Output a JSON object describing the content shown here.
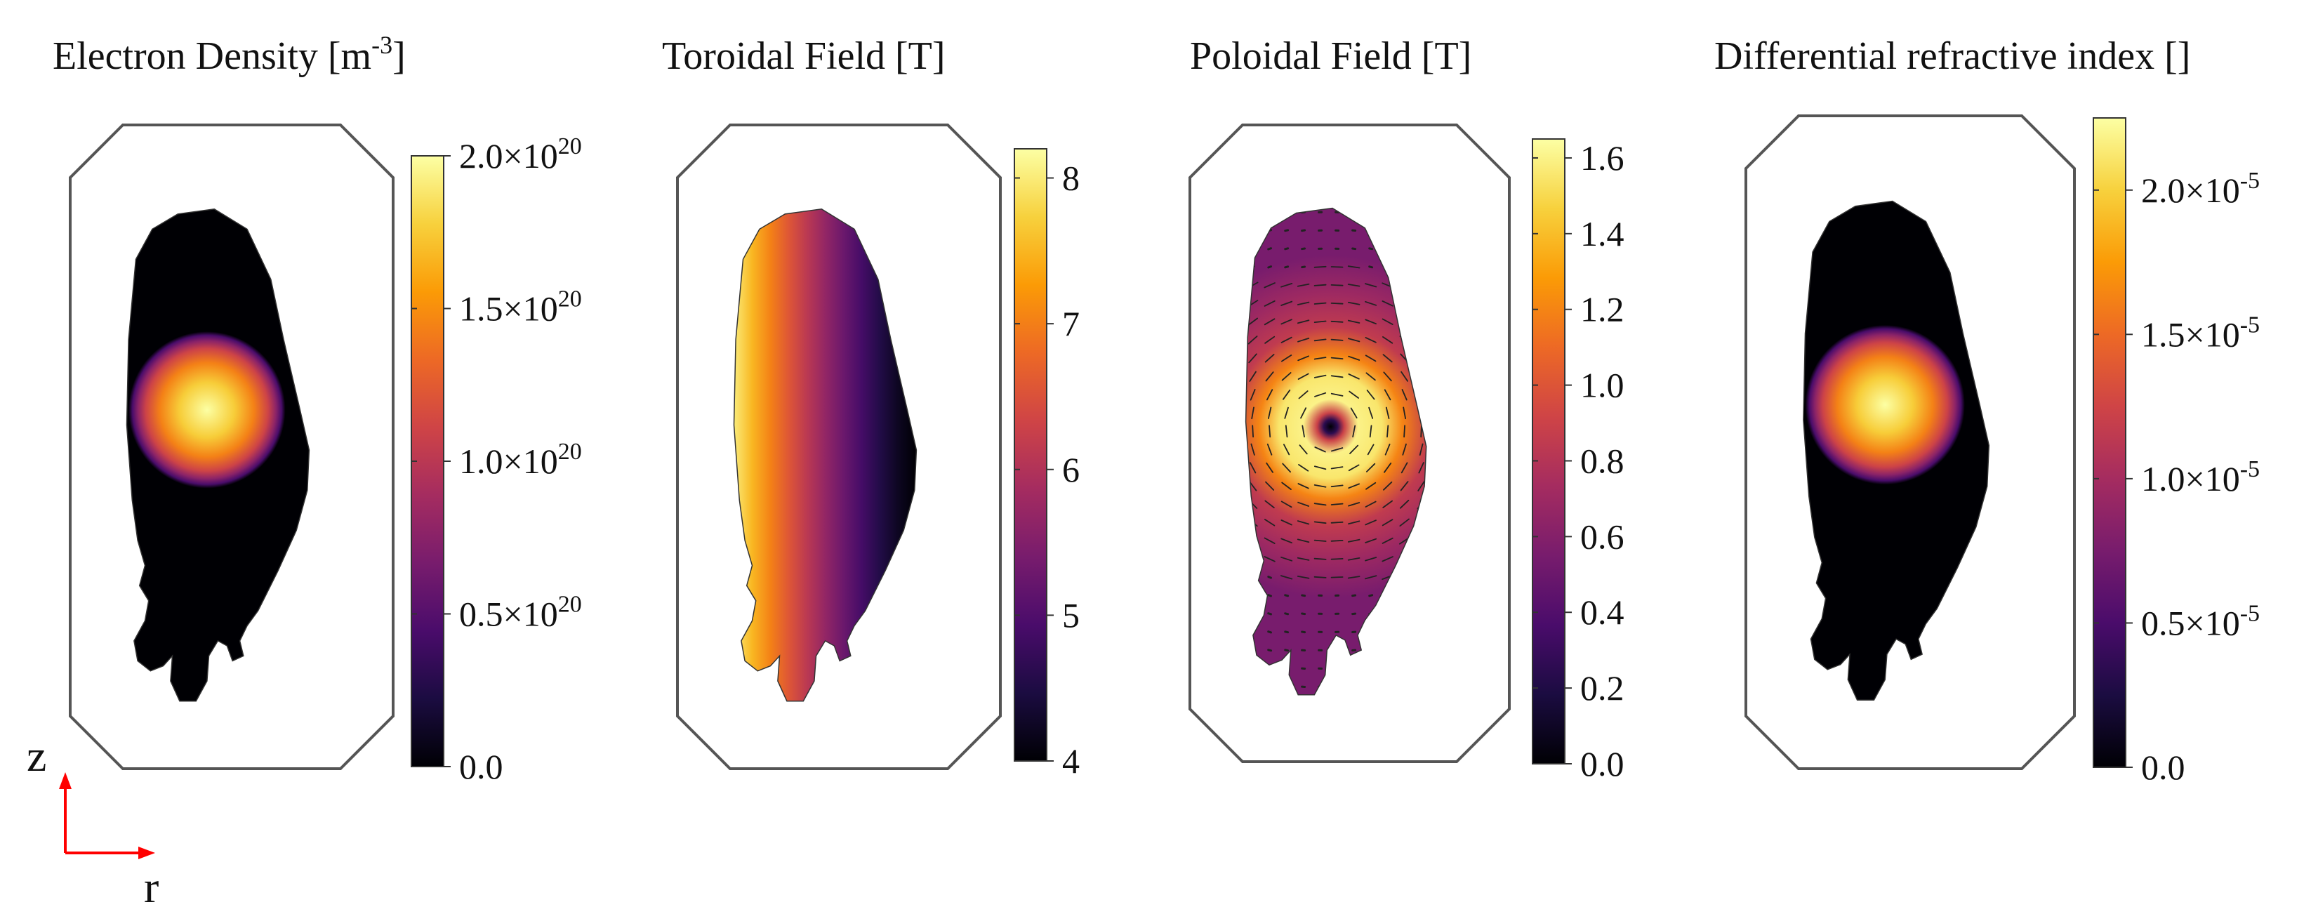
{
  "colors": {
    "colormap": [
      "#000004",
      "#1b0c41",
      "#4a0c6b",
      "#781c6d",
      "#a52c60",
      "#cf4446",
      "#ed6925",
      "#fb9b06",
      "#f7d13d",
      "#fcffa4"
    ],
    "vessel_stroke": "#555555",
    "axis_arrow": "#ff0000",
    "field_arrows": "#222222"
  },
  "axes": {
    "vertical_label": "z",
    "horizontal_label": "r"
  },
  "chart_data": [
    {
      "type": "heatmap",
      "title": "Electron Density [m-3]",
      "title_parts": {
        "text": "Electron Density [m",
        "sup": "-3",
        "close": "]"
      },
      "field": "gaussian_core",
      "colorbar": {
        "range": [
          0.0,
          2e+20
        ],
        "ticks": [
          {
            "value": 0.0,
            "mantissa": "0.0",
            "exponent": ""
          },
          {
            "value": 5e+19,
            "mantissa": "0.5×10",
            "exponent": "20"
          },
          {
            "value": 1e+20,
            "mantissa": "1.0×10",
            "exponent": "20"
          },
          {
            "value": 1.5e+20,
            "mantissa": "1.5×10",
            "exponent": "20"
          },
          {
            "value": 2e+20,
            "mantissa": "2.0×10",
            "exponent": "20"
          }
        ]
      },
      "core_peak": 2e+20
    },
    {
      "type": "heatmap",
      "title": "Toroidal Field [T]",
      "title_parts": {
        "text": "Toroidal Field [T]",
        "sup": "",
        "close": ""
      },
      "field": "radial_gradient_1_over_r",
      "colorbar": {
        "range": [
          4.0,
          8.2
        ],
        "ticks": [
          {
            "value": 4,
            "mantissa": "4",
            "exponent": ""
          },
          {
            "value": 5,
            "mantissa": "5",
            "exponent": ""
          },
          {
            "value": 6,
            "mantissa": "6",
            "exponent": ""
          },
          {
            "value": 7,
            "mantissa": "7",
            "exponent": ""
          },
          {
            "value": 8,
            "mantissa": "8",
            "exponent": ""
          }
        ]
      },
      "inner_edge_value": 8.0,
      "outer_edge_value": 4.0
    },
    {
      "type": "heatmap",
      "title": "Poloidal Field [T]",
      "title_parts": {
        "text": "Poloidal Field [T]",
        "sup": "",
        "close": ""
      },
      "field": "ring_with_vectors",
      "colorbar": {
        "range": [
          0.0,
          1.65
        ],
        "ticks": [
          {
            "value": 0.0,
            "mantissa": "0.0",
            "exponent": ""
          },
          {
            "value": 0.2,
            "mantissa": "0.2",
            "exponent": ""
          },
          {
            "value": 0.4,
            "mantissa": "0.4",
            "exponent": ""
          },
          {
            "value": 0.6,
            "mantissa": "0.6",
            "exponent": ""
          },
          {
            "value": 0.8,
            "mantissa": "0.8",
            "exponent": ""
          },
          {
            "value": 1.0,
            "mantissa": "1.0",
            "exponent": ""
          },
          {
            "value": 1.2,
            "mantissa": "1.2",
            "exponent": ""
          },
          {
            "value": 1.4,
            "mantissa": "1.4",
            "exponent": ""
          },
          {
            "value": 1.6,
            "mantissa": "1.6",
            "exponent": ""
          }
        ]
      },
      "center_value": 0.0,
      "ring_peak": 1.6
    },
    {
      "type": "heatmap",
      "title": "Differential refractive index []",
      "title_parts": {
        "text": "Differential refractive index []",
        "sup": "",
        "close": ""
      },
      "field": "gaussian_core",
      "colorbar": {
        "range": [
          0.0,
          2.25e-05
        ],
        "ticks": [
          {
            "value": 0.0,
            "mantissa": "0.0",
            "exponent": ""
          },
          {
            "value": 5e-06,
            "mantissa": "0.5×10",
            "exponent": "-5"
          },
          {
            "value": 1e-05,
            "mantissa": "1.0×10",
            "exponent": "-5"
          },
          {
            "value": 1.5e-05,
            "mantissa": "1.5×10",
            "exponent": "-5"
          },
          {
            "value": 2e-05,
            "mantissa": "2.0×10",
            "exponent": "-5"
          }
        ]
      },
      "core_peak": 2.25e-05
    }
  ]
}
